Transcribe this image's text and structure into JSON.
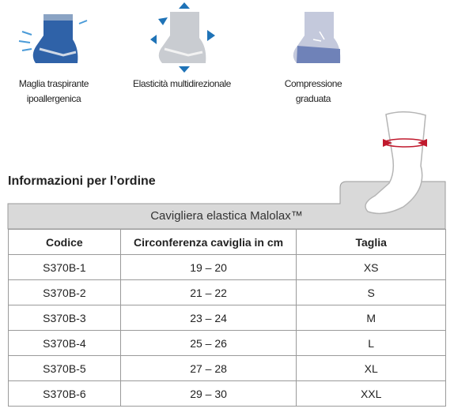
{
  "features": [
    {
      "lines": [
        "Maglia traspirante",
        "ipoallergenica"
      ]
    },
    {
      "lines": [
        "Elasticità multidirezionale"
      ]
    },
    {
      "lines": [
        "Compressione",
        "graduata"
      ]
    }
  ],
  "heading": "Informazioni per l’ordine",
  "table": {
    "title": "Cavigliera elastica Malolax™",
    "headers": [
      "Codice",
      "Circonferenza caviglia in cm",
      "Taglia"
    ],
    "rows": [
      [
        "S370B-1",
        "19 – 20",
        "XS"
      ],
      [
        "S370B-2",
        "21 – 22",
        "S"
      ],
      [
        "S370B-3",
        "23 – 24",
        "M"
      ],
      [
        "S370B-4",
        "25 – 26",
        "L"
      ],
      [
        "S370B-5",
        "27 – 28",
        "XL"
      ],
      [
        "S370B-6",
        "29 – 30",
        "XXL"
      ]
    ]
  }
}
